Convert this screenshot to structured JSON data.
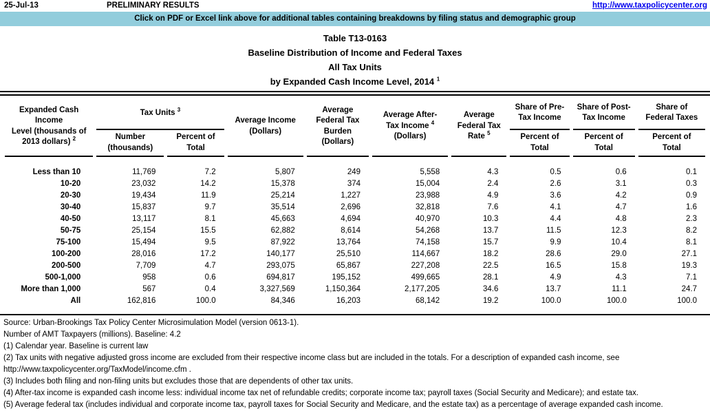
{
  "colors": {
    "banner_bg": "#92CDDC",
    "link_blue": "#0000EE"
  },
  "topbar": {
    "date": "25-Jul-13",
    "status": "PRELIMINARY RESULTS",
    "url": "http://www.taxpolicycenter.org"
  },
  "banner": {
    "text": "Click on PDF or Excel link above for additional tables containing breakdowns by filing status and demographic group"
  },
  "title": {
    "line1": "Table T13-0163",
    "line2": "Baseline Distribution of Income and Federal Taxes",
    "line3": "All Tax Units",
    "line4": "by Expanded Cash Income Level, 2014",
    "line4_sup": "1"
  },
  "table": {
    "col_income": {
      "l1": "Expanded Cash Income",
      "l2": "Level (thousands of",
      "l3": "2013 dollars)",
      "sup": "2"
    },
    "group_tax_units": {
      "label": "Tax Units",
      "sup": "3"
    },
    "col_number": {
      "l1": "Number",
      "l2": "(thousands)"
    },
    "col_pct_total": {
      "l1": "Percent of",
      "l2": "Total"
    },
    "col_avg_income": {
      "l1": "Average Income",
      "l2": "(Dollars)"
    },
    "col_avg_burden": {
      "l1": "Average",
      "l2": "Federal Tax",
      "l3": "Burden",
      "l4": "(Dollars)"
    },
    "col_after_tax": {
      "l1": "Average After-",
      "l2": "Tax Income",
      "sup": "4",
      "l3": "(Dollars)"
    },
    "col_avg_rate": {
      "l1": "Average",
      "l2": "Federal Tax",
      "l3": "Rate",
      "sup": "5"
    },
    "col_share_pre": {
      "l1": "Share of Pre-",
      "l2": "Tax Income"
    },
    "col_share_post": {
      "l1": "Share of Post-",
      "l2": "Tax Income"
    },
    "col_share_fed": {
      "l1": "Share of",
      "l2": "Federal Taxes"
    },
    "rows": [
      {
        "label": "Less than 10",
        "values": [
          "11,769",
          "7.2",
          "5,807",
          "249",
          "5,558",
          "4.3",
          "0.5",
          "0.6",
          "0.1"
        ]
      },
      {
        "label": "10-20",
        "values": [
          "23,032",
          "14.2",
          "15,378",
          "374",
          "15,004",
          "2.4",
          "2.6",
          "3.1",
          "0.3"
        ]
      },
      {
        "label": "20-30",
        "values": [
          "19,434",
          "11.9",
          "25,214",
          "1,227",
          "23,988",
          "4.9",
          "3.6",
          "4.2",
          "0.9"
        ]
      },
      {
        "label": "30-40",
        "values": [
          "15,837",
          "9.7",
          "35,514",
          "2,696",
          "32,818",
          "7.6",
          "4.1",
          "4.7",
          "1.6"
        ]
      },
      {
        "label": "40-50",
        "values": [
          "13,117",
          "8.1",
          "45,663",
          "4,694",
          "40,970",
          "10.3",
          "4.4",
          "4.8",
          "2.3"
        ]
      },
      {
        "label": "50-75",
        "values": [
          "25,154",
          "15.5",
          "62,882",
          "8,614",
          "54,268",
          "13.7",
          "11.5",
          "12.3",
          "8.2"
        ]
      },
      {
        "label": "75-100",
        "values": [
          "15,494",
          "9.5",
          "87,922",
          "13,764",
          "74,158",
          "15.7",
          "9.9",
          "10.4",
          "8.1"
        ]
      },
      {
        "label": "100-200",
        "values": [
          "28,016",
          "17.2",
          "140,177",
          "25,510",
          "114,667",
          "18.2",
          "28.6",
          "29.0",
          "27.1"
        ]
      },
      {
        "label": "200-500",
        "values": [
          "7,709",
          "4.7",
          "293,075",
          "65,867",
          "227,208",
          "22.5",
          "16.5",
          "15.8",
          "19.3"
        ]
      },
      {
        "label": "500-1,000",
        "values": [
          "958",
          "0.6",
          "694,817",
          "195,152",
          "499,665",
          "28.1",
          "4.9",
          "4.3",
          "7.1"
        ]
      },
      {
        "label": "More than 1,000",
        "values": [
          "567",
          "0.4",
          "3,327,569",
          "1,150,364",
          "2,177,205",
          "34.6",
          "13.7",
          "11.1",
          "24.7"
        ]
      },
      {
        "label": "All",
        "values": [
          "162,816",
          "100.0",
          "84,346",
          "16,203",
          "68,142",
          "19.2",
          "100.0",
          "100.0",
          "100.0"
        ]
      }
    ]
  },
  "footnotes": [
    "Source: Urban-Brookings Tax Policy Center Microsimulation Model (version 0613-1).",
    "Number of AMT Taxpayers (millions).  Baseline: 4.2",
    "(1) Calendar year. Baseline is current law",
    "(2) Tax units with negative adjusted gross income are excluded from their respective income class but are included in the totals. For a description of expanded cash income, see",
    "http://www.taxpolicycenter.org/TaxModel/income.cfm .",
    "(3) Includes both filing and non-filing units but excludes those that are dependents of other tax units.",
    "(4) After-tax income is expanded cash income less: individual income tax net of refundable credits; corporate income tax; payroll taxes (Social Security and Medicare); and estate tax.",
    "(5) Average federal tax (includes individual and corporate income tax, payroll taxes for Social Security and Medicare, and the estate tax) as a percentage of average expanded cash income."
  ]
}
